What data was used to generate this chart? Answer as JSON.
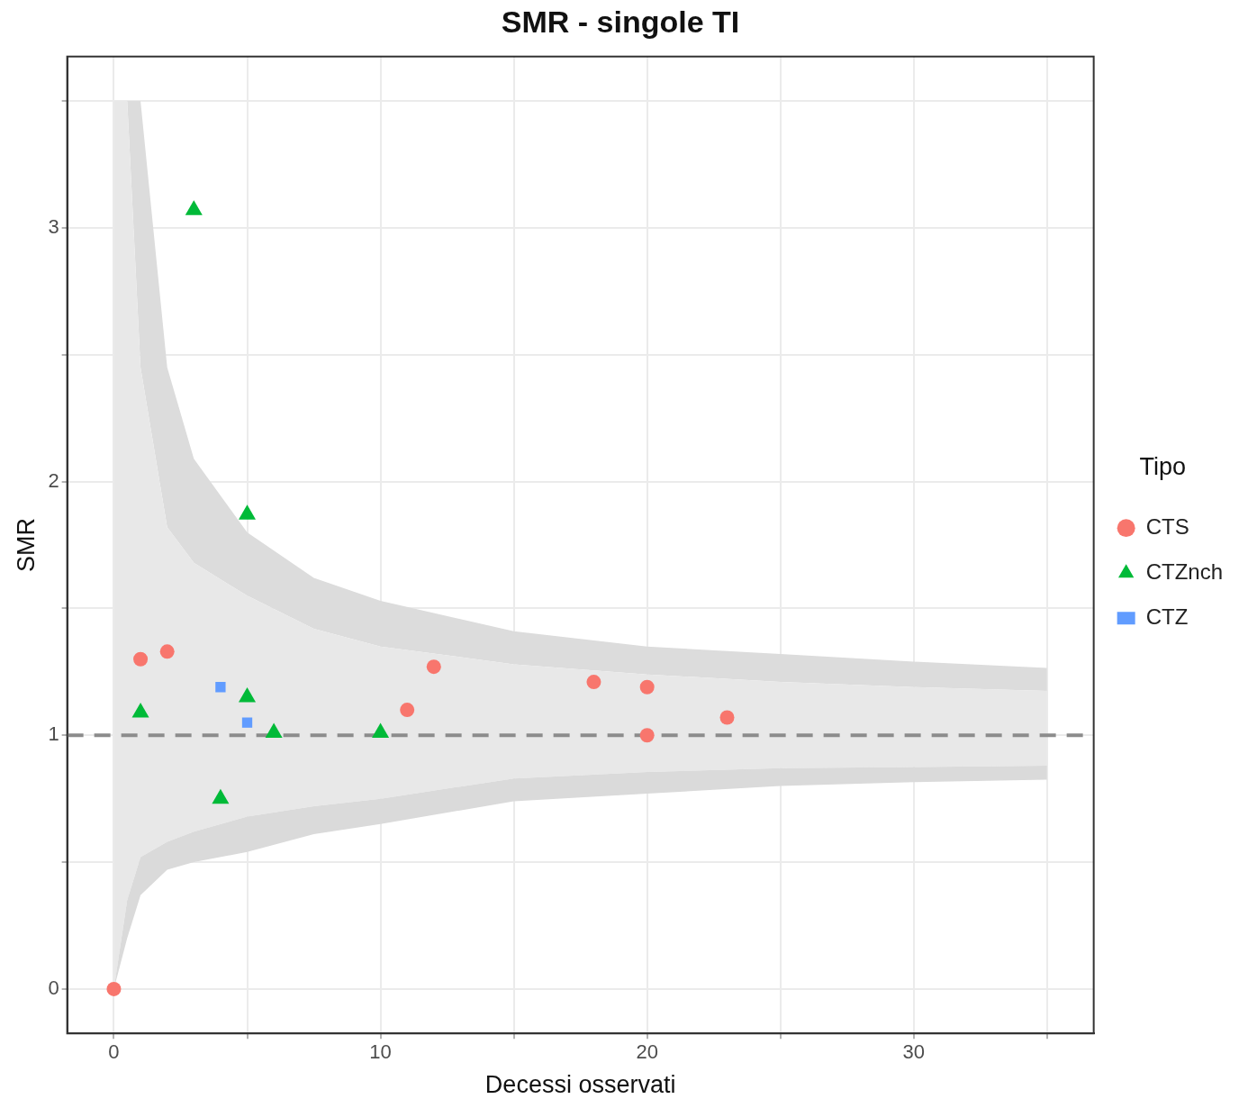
{
  "chart_data": {
    "type": "scatter",
    "title": "SMR - singole TI",
    "xlabel": "Decessi osservati",
    "ylabel": "SMR",
    "legend_title": "Tipo",
    "legend": "right",
    "grid": true,
    "xlim": [
      -1.75,
      36.75
    ],
    "xticks": [
      0,
      {
        "value": 5,
        "label": null
      },
      10,
      {
        "value": 15,
        "label": null
      },
      20,
      {
        "value": 25,
        "label": null
      },
      30,
      {
        "value": 35,
        "label": null
      }
    ],
    "ylim": [
      -0.175,
      3.675
    ],
    "yticks": [
      0,
      {
        "value": 0.5,
        "label": null
      },
      1,
      {
        "value": 1.5,
        "label": null
      },
      2,
      {
        "value": 2.5,
        "label": null
      },
      3,
      {
        "value": 3.5,
        "label": null
      }
    ],
    "ref_lines": [
      {
        "axis": "y",
        "value": 1,
        "color": "#8c8c8c",
        "line_style": "dashed"
      }
    ],
    "series": [
      {
        "type": "line",
        "color": "#dcdcdc",
        "x": [
          0,
          0.5,
          1,
          2,
          3,
          5,
          7.5,
          10,
          15,
          20,
          25,
          30,
          35
        ],
        "values": [
          null,
          null,
          null,
          null,
          null,
          null,
          null,
          null,
          null,
          null,
          null,
          null,
          null
        ],
        "lower": [
          3.5,
          3.5,
          2.45,
          1.82,
          1.68,
          1.55,
          1.42,
          1.35,
          1.28,
          1.24,
          1.21,
          1.19,
          1.175
        ],
        "upper": [
          3.5,
          3.5,
          3.5,
          2.45,
          2.09,
          1.8,
          1.62,
          1.53,
          1.41,
          1.35,
          1.32,
          1.29,
          1.265
        ]
      },
      {
        "type": "line",
        "color": "#e8e8e8",
        "x": [
          0,
          0.5,
          1,
          2,
          3,
          5,
          7.5,
          10,
          15,
          20,
          25,
          30,
          35
        ],
        "values": [
          null,
          null,
          null,
          null,
          null,
          null,
          null,
          null,
          null,
          null,
          null,
          null,
          null
        ],
        "lower": [
          0,
          0.35,
          0.52,
          0.58,
          0.62,
          0.68,
          0.72,
          0.75,
          0.83,
          0.855,
          0.87,
          0.875,
          0.88
        ],
        "upper": [
          3.5,
          3.5,
          2.45,
          1.82,
          1.68,
          1.55,
          1.42,
          1.35,
          1.28,
          1.24,
          1.21,
          1.19,
          1.175
        ]
      },
      {
        "type": "line",
        "color": "#dadada",
        "x": [
          0,
          0.5,
          1,
          2,
          3,
          5,
          7.5,
          10,
          15,
          20,
          25,
          30,
          35
        ],
        "values": [
          null,
          null,
          null,
          null,
          null,
          null,
          null,
          null,
          null,
          null,
          null,
          null,
          null
        ],
        "lower": [
          0,
          0.2,
          0.37,
          0.47,
          0.5,
          0.54,
          0.61,
          0.65,
          0.74,
          0.77,
          0.8,
          0.815,
          0.825
        ],
        "upper": [
          0,
          0.35,
          0.52,
          0.58,
          0.62,
          0.68,
          0.72,
          0.75,
          0.83,
          0.855,
          0.87,
          0.875,
          0.88
        ]
      },
      {
        "name": "CTS",
        "color": "#f8766d",
        "marker": "circle",
        "x": [
          0,
          1,
          2,
          11,
          12,
          18,
          20,
          20,
          23
        ],
        "values": [
          0,
          1.3,
          1.33,
          1.1,
          1.27,
          1.21,
          1.19,
          1.0,
          1.07
        ]
      },
      {
        "name": "CTZnch",
        "color": "#00ba38",
        "marker": "triangle",
        "x": [
          1,
          3,
          4,
          5,
          5,
          6,
          10
        ],
        "values": [
          1.09,
          3.07,
          0.75,
          1.87,
          1.15,
          1.01,
          1.01
        ]
      },
      {
        "name": "CTZ",
        "color": "#619cff",
        "marker": "square",
        "x": [
          4,
          5
        ],
        "values": [
          1.19,
          1.05
        ]
      }
    ]
  }
}
